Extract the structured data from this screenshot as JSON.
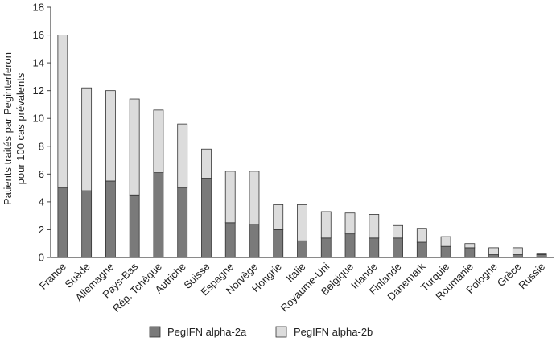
{
  "chart_data": {
    "type": "bar",
    "stacked": true,
    "categories": [
      "France",
      "Suède",
      "Allemagne",
      "Pays-Bas",
      "Rép. Tchèque",
      "Autriche",
      "Suisse",
      "Espagne",
      "Norvège",
      "Hongrie",
      "Italie",
      "Royaume-Uni",
      "Belgique",
      "Irlande",
      "Finlande",
      "Danemark",
      "Turquie",
      "Roumanie",
      "Pologne",
      "Grèce",
      "Russie"
    ],
    "series": [
      {
        "name": "PegIFN alpha-2a",
        "color": "#7a7a7a",
        "values": [
          5.0,
          4.8,
          5.5,
          4.5,
          6.1,
          5.0,
          5.7,
          2.5,
          2.4,
          2.0,
          1.2,
          1.4,
          1.7,
          1.4,
          1.4,
          1.1,
          0.8,
          0.7,
          0.2,
          0.2,
          0.2
        ]
      },
      {
        "name": "PegIFN alpha-2b",
        "color": "#dcdcdc",
        "values": [
          11.0,
          7.4,
          6.5,
          6.9,
          4.5,
          4.6,
          2.1,
          3.7,
          3.8,
          1.8,
          2.6,
          1.9,
          1.5,
          1.7,
          0.9,
          1.0,
          0.7,
          0.3,
          0.5,
          0.5,
          0.05
        ]
      }
    ],
    "ylabel_line1": "Patients traités par Peginterferon",
    "ylabel_line2": "pour 100 cas prévalents",
    "ylim": [
      0,
      18
    ],
    "yticks": [
      0,
      2,
      4,
      6,
      8,
      10,
      12,
      14,
      16,
      18
    ],
    "legend_position": "bottom"
  }
}
